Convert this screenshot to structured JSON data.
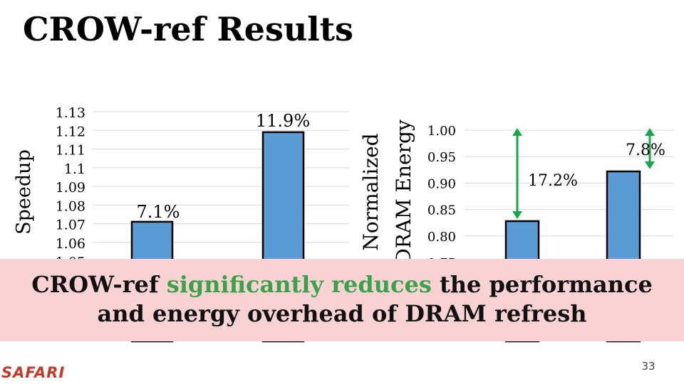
{
  "slide": {
    "title": "CROW-ref Results",
    "page_number": "33",
    "logo_text": "SAFARI"
  },
  "banner": {
    "line1_a": "CROW-ref ",
    "line1_b": "significantly reduces",
    "line1_c": " the performance",
    "line2": "and energy overhead of DRAM refresh",
    "highlight_color": "#3aa34a"
  },
  "colors": {
    "bar_fill": "#5b9bd5",
    "bar_stroke": "#000000",
    "arrow": "#1aa64a",
    "gridline": "#d9d9d9",
    "banner_bg": "#f9d3d3"
  },
  "chart_data": [
    {
      "type": "bar",
      "ylabel": "Speedup",
      "tick_labels": [
        "1.13",
        "1.12",
        "1.11",
        "1.1",
        "1.09",
        "1.08",
        "1.07",
        "1.06",
        "1.05"
      ],
      "visible_ylim": [
        1.05,
        1.13
      ],
      "grid": true,
      "values": [
        1.071,
        1.119
      ],
      "data_labels": [
        "7.1%",
        "11.9%"
      ]
    },
    {
      "type": "bar",
      "ylabel": "Normalized DRAM Energy",
      "tick_labels": [
        "1.00",
        "0.95",
        "0.90",
        "0.85",
        "0.80",
        "0.75"
      ],
      "visible_ylim": [
        0.75,
        1.0
      ],
      "grid": true,
      "values": [
        0.828,
        0.922
      ],
      "data_labels": [
        "17.2%",
        "7.8%"
      ]
    }
  ]
}
